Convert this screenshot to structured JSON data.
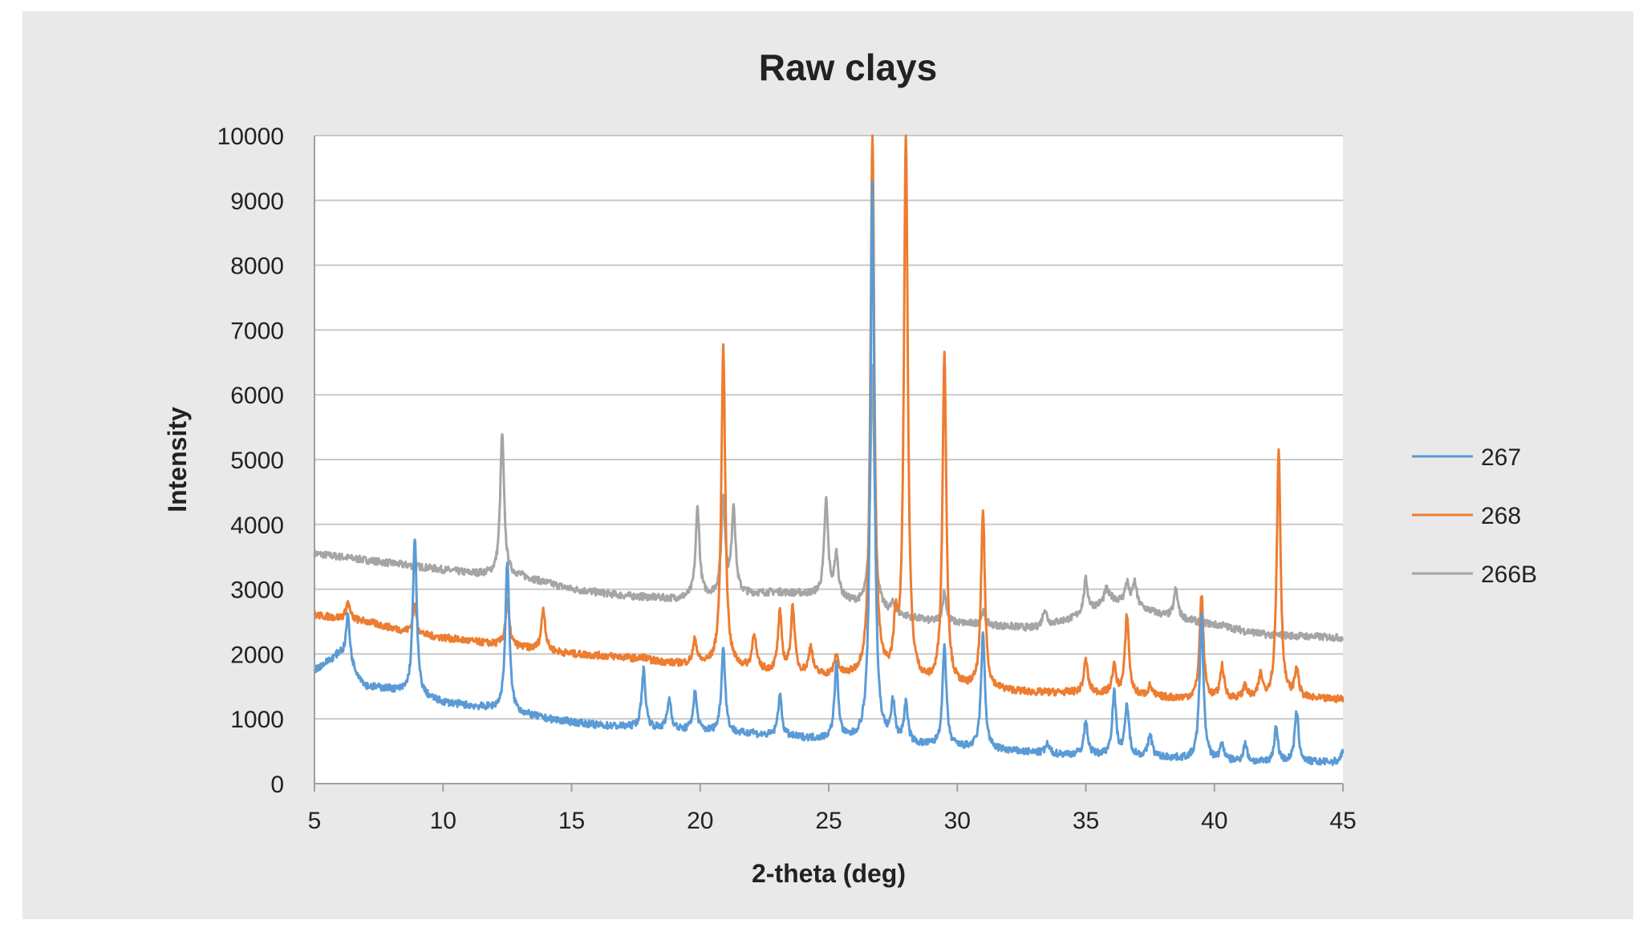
{
  "chart_data": {
    "type": "line",
    "title": "Raw clays",
    "xlabel": "2-theta (deg)",
    "ylabel": "Intensity",
    "xlim": [
      5,
      45
    ],
    "ylim": [
      0,
      10000
    ],
    "x_ticks": [
      5,
      10,
      15,
      20,
      25,
      30,
      35,
      40,
      45
    ],
    "y_ticks": [
      0,
      1000,
      2000,
      3000,
      4000,
      5000,
      6000,
      7000,
      8000,
      9000,
      10000
    ],
    "grid": "horizontal",
    "legend_position": "right",
    "series": [
      {
        "name": "267",
        "color": "#5b9bd5",
        "baseline": [
          [
            5,
            1750
          ],
          [
            6,
            2000
          ],
          [
            7,
            1500
          ],
          [
            8,
            1450
          ],
          [
            10,
            1250
          ],
          [
            12,
            1150
          ],
          [
            14,
            1000
          ],
          [
            16,
            900
          ],
          [
            18,
            850
          ],
          [
            20,
            800
          ],
          [
            22,
            750
          ],
          [
            24,
            700
          ],
          [
            26,
            650
          ],
          [
            28,
            600
          ],
          [
            30,
            550
          ],
          [
            32,
            500
          ],
          [
            34,
            450
          ],
          [
            36,
            430
          ],
          [
            38,
            400
          ],
          [
            40,
            350
          ],
          [
            42,
            320
          ],
          [
            45,
            330
          ]
        ],
        "peaks": [
          [
            6.3,
            2600
          ],
          [
            8.9,
            3800
          ],
          [
            12.5,
            3450
          ],
          [
            17.8,
            1750
          ],
          [
            18.8,
            1300
          ],
          [
            19.8,
            1400
          ],
          [
            20.9,
            2100
          ],
          [
            22.0,
            800
          ],
          [
            23.1,
            1350
          ],
          [
            25.3,
            1800
          ],
          [
            26.7,
            9300
          ],
          [
            27.5,
            1200
          ],
          [
            28.0,
            1200
          ],
          [
            29.5,
            2100
          ],
          [
            31.0,
            2300
          ],
          [
            33.5,
            600
          ],
          [
            35.0,
            950
          ],
          [
            36.1,
            1400
          ],
          [
            36.6,
            1200
          ],
          [
            37.5,
            750
          ],
          [
            39.5,
            2600
          ],
          [
            40.3,
            600
          ],
          [
            41.2,
            600
          ],
          [
            42.4,
            850
          ],
          [
            43.2,
            1100
          ],
          [
            45.0,
            500
          ]
        ]
      },
      {
        "name": "268",
        "color": "#ed7d31",
        "baseline": [
          [
            5,
            2600
          ],
          [
            7,
            2500
          ],
          [
            9,
            2300
          ],
          [
            11,
            2200
          ],
          [
            13,
            2100
          ],
          [
            15,
            2000
          ],
          [
            17,
            1950
          ],
          [
            19,
            1850
          ],
          [
            21,
            1800
          ],
          [
            23,
            1700
          ],
          [
            25,
            1650
          ],
          [
            27,
            1600
          ],
          [
            29,
            1500
          ],
          [
            31,
            1450
          ],
          [
            33,
            1400
          ],
          [
            35,
            1400
          ],
          [
            37,
            1350
          ],
          [
            39,
            1300
          ],
          [
            41,
            1300
          ],
          [
            43,
            1300
          ],
          [
            45,
            1300
          ]
        ],
        "peaks": [
          [
            6.3,
            2800
          ],
          [
            8.9,
            2750
          ],
          [
            12.5,
            2800
          ],
          [
            13.9,
            2700
          ],
          [
            17.8,
            1950
          ],
          [
            19.8,
            2200
          ],
          [
            20.9,
            6750
          ],
          [
            22.1,
            2300
          ],
          [
            23.1,
            2600
          ],
          [
            23.6,
            2700
          ],
          [
            24.3,
            2100
          ],
          [
            25.3,
            1950
          ],
          [
            26.7,
            10000
          ],
          [
            27.6,
            2300
          ],
          [
            28.0,
            10000
          ],
          [
            29.5,
            6600
          ],
          [
            31.0,
            4200
          ],
          [
            35.0,
            1900
          ],
          [
            36.1,
            1800
          ],
          [
            36.6,
            2600
          ],
          [
            37.5,
            1500
          ],
          [
            39.5,
            2900
          ],
          [
            40.3,
            1800
          ],
          [
            41.2,
            1500
          ],
          [
            41.8,
            1650
          ],
          [
            42.5,
            5150
          ],
          [
            43.2,
            1750
          ]
        ]
      },
      {
        "name": "266B",
        "color": "#a5a5a5",
        "baseline": [
          [
            5,
            3550
          ],
          [
            7,
            3450
          ],
          [
            9,
            3350
          ],
          [
            11,
            3250
          ],
          [
            13,
            3200
          ],
          [
            15,
            3000
          ],
          [
            17,
            2900
          ],
          [
            19,
            2850
          ],
          [
            21,
            2900
          ],
          [
            23,
            2950
          ],
          [
            25,
            2900
          ],
          [
            27,
            2650
          ],
          [
            29,
            2500
          ],
          [
            31,
            2450
          ],
          [
            33,
            2400
          ],
          [
            34.5,
            2550
          ],
          [
            36,
            2850
          ],
          [
            38,
            2600
          ],
          [
            40,
            2450
          ],
          [
            42,
            2300
          ],
          [
            45,
            2250
          ]
        ],
        "peaks": [
          [
            12.3,
            5400
          ],
          [
            19.9,
            4250
          ],
          [
            20.9,
            4400
          ],
          [
            21.3,
            4250
          ],
          [
            24.9,
            4350
          ],
          [
            25.3,
            3500
          ],
          [
            26.7,
            6500
          ],
          [
            27.5,
            2750
          ],
          [
            29.5,
            2950
          ],
          [
            31.0,
            2650
          ],
          [
            33.4,
            2700
          ],
          [
            35.0,
            3150
          ],
          [
            35.8,
            3000
          ],
          [
            36.6,
            3100
          ],
          [
            36.9,
            3100
          ],
          [
            38.5,
            3000
          ],
          [
            40.3,
            2450
          ],
          [
            41.2,
            2350
          ]
        ]
      }
    ]
  }
}
